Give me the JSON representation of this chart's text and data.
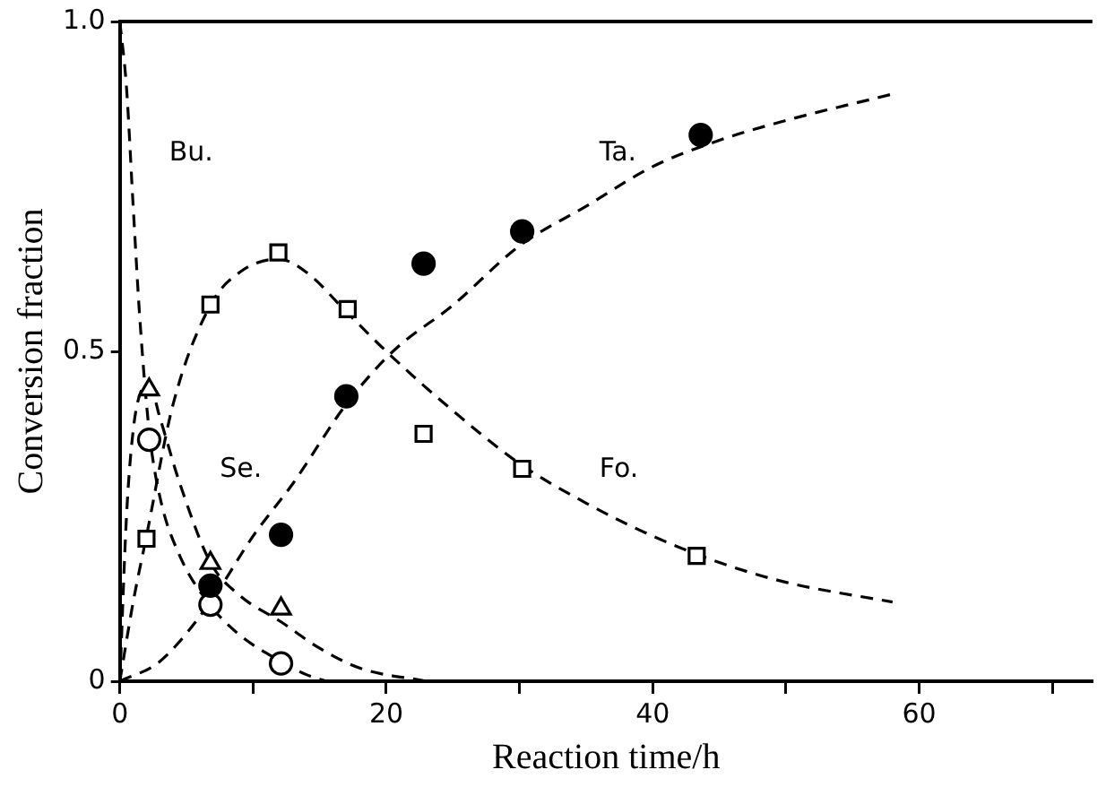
{
  "chart_data": {
    "type": "scatter",
    "xlabel": "Reaction time/h",
    "ylabel": "Conversion fraction",
    "xlim": [
      0,
      73
    ],
    "xticks": [
      0,
      {
        "value": 10,
        "label": null
      },
      20,
      {
        "value": 30,
        "label": null
      },
      40,
      {
        "value": 50,
        "label": null
      },
      60,
      {
        "value": 70,
        "label": null
      }
    ],
    "ylim": [
      0,
      1.0
    ],
    "yticks": [
      0,
      0.5,
      {
        "value": 1.0,
        "label": "1.0"
      }
    ],
    "grid": false,
    "legend": false,
    "series": [
      {
        "marker": "circle",
        "color": "#000000",
        "x": [
          6.8,
          12.1,
          17.0,
          22.8,
          30.2,
          43.6
        ],
        "values": [
          0.145,
          0.222,
          0.432,
          0.633,
          0.682,
          0.828
        ]
      },
      {
        "marker": "square",
        "color": "#000000",
        "x": [
          2.0,
          6.8,
          11.9,
          17.1,
          22.8,
          30.2,
          43.3
        ],
        "values": [
          0.216,
          0.571,
          0.65,
          0.564,
          0.375,
          0.322,
          0.19
        ]
      },
      {
        "marker": "triangle",
        "color": "#000000",
        "x": [
          2.2,
          6.8,
          12.1
        ],
        "values": [
          0.442,
          0.179,
          0.11
        ]
      },
      {
        "marker": "circle",
        "color": "#000000",
        "x": [
          2.2,
          6.8,
          12.1
        ],
        "values": [
          0.366,
          0.116,
          0.027
        ]
      },
      {
        "type": "line",
        "marker": "none",
        "line_style": "dashed",
        "color": "#000000",
        "x": [
          0,
          0.5,
          1,
          1.5,
          2.2,
          3,
          4.5,
          6.8,
          9,
          12.1,
          14,
          15.5
        ],
        "values": [
          1.0,
          0.9,
          0.72,
          0.55,
          0.38,
          0.28,
          0.19,
          0.115,
          0.07,
          0.03,
          0.01,
          0
        ]
      },
      {
        "type": "line",
        "marker": "none",
        "line_style": "dashed",
        "color": "#000000",
        "x": [
          0,
          0.5,
          1,
          1.6,
          2.2,
          3,
          4.5,
          6.8,
          9,
          12.1,
          15,
          18,
          23
        ],
        "values": [
          0,
          0.25,
          0.38,
          0.44,
          0.45,
          0.4,
          0.3,
          0.18,
          0.13,
          0.09,
          0.05,
          0.02,
          0
        ]
      },
      {
        "type": "line",
        "marker": "none",
        "line_style": "dashed",
        "color": "#000000",
        "x": [
          0,
          1,
          2,
          4,
          6.8,
          9,
          11.9,
          14,
          17,
          20,
          25,
          30,
          35,
          40,
          45,
          50,
          58
        ],
        "values": [
          0,
          0.12,
          0.22,
          0.42,
          0.57,
          0.62,
          0.64,
          0.62,
          0.56,
          0.5,
          0.41,
          0.33,
          0.27,
          0.22,
          0.18,
          0.15,
          0.12
        ]
      },
      {
        "type": "line",
        "marker": "none",
        "line_style": "dashed",
        "color": "#000000",
        "x": [
          0,
          3,
          6.8,
          10,
          13,
          17,
          20.5,
          25,
          30,
          35,
          40,
          45,
          50,
          58
        ],
        "values": [
          0,
          0.03,
          0.12,
          0.22,
          0.3,
          0.42,
          0.5,
          0.57,
          0.66,
          0.72,
          0.78,
          0.82,
          0.85,
          0.89
        ]
      }
    ],
    "annotations": [
      "Bu.",
      "Se.",
      "Fo.",
      "Ta."
    ]
  }
}
